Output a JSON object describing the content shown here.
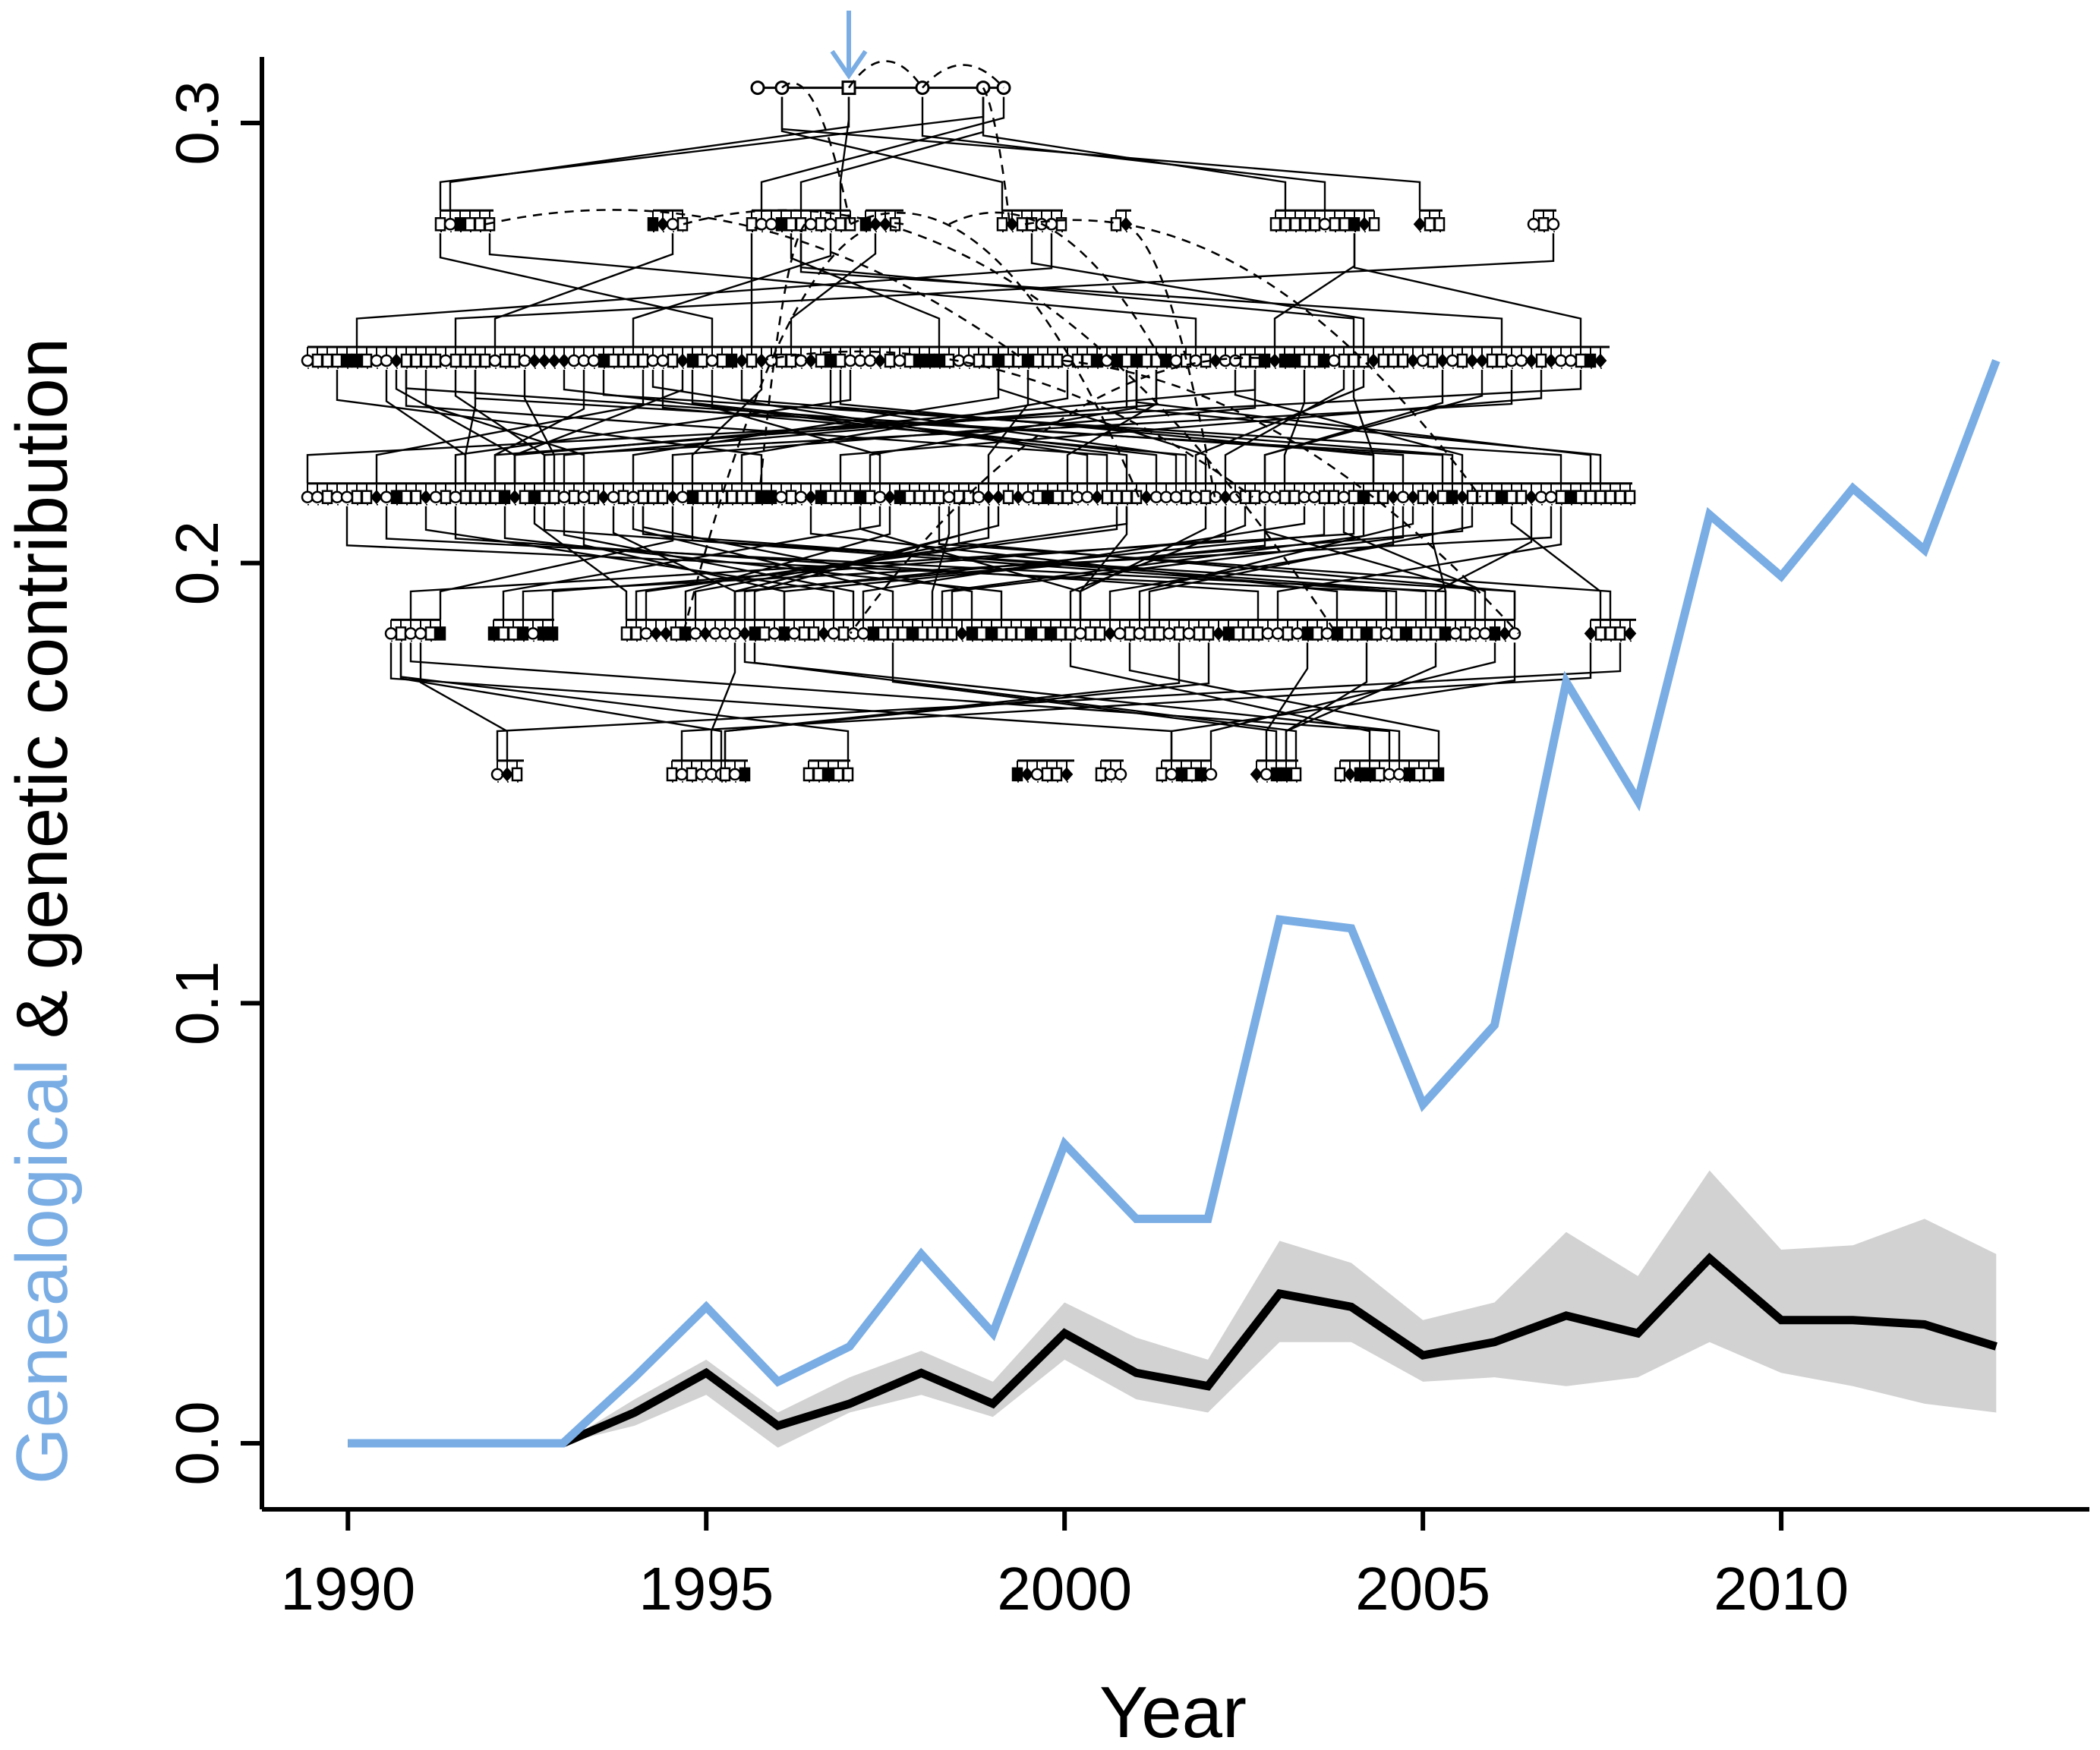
{
  "chart_data": {
    "type": "line",
    "xlabel": "Year",
    "ylabel": {
      "highlight": "Genealogical",
      "rest": " & genetic contribution",
      "highlight_color": "#7aade4",
      "rest_color": "#000000"
    },
    "xlim": [
      1988.8,
      2014.3
    ],
    "ylim": [
      -0.015,
      0.315
    ],
    "x_ticks": [
      1990,
      1995,
      2000,
      2005,
      2010
    ],
    "x_tick_labels": [
      "1990",
      "1995",
      "2000",
      "2005",
      "2010"
    ],
    "y_ticks": [
      0.0,
      0.1,
      0.2,
      0.3
    ],
    "y_tick_labels": [
      "0.0",
      "0.1",
      "0.2",
      "0.3"
    ],
    "x": [
      1990,
      1991,
      1992,
      1993,
      1994,
      1995,
      1996,
      1997,
      1998,
      1999,
      2000,
      2001,
      2002,
      2003,
      2004,
      2005,
      2006,
      2007,
      2008,
      2009,
      2010,
      2011,
      2012,
      2013
    ],
    "series": [
      {
        "role": "genealogical",
        "color": "#7aade4",
        "values": [
          0,
          0,
          0,
          0,
          0.015,
          0.031,
          0.014,
          0.022,
          0.043,
          0.025,
          0.068,
          0.051,
          0.051,
          0.119,
          0.117,
          0.077,
          0.095,
          0.173,
          0.146,
          0.211,
          0.197,
          0.217,
          0.203,
          0.246
        ]
      },
      {
        "role": "genetic",
        "color": "#000000",
        "values": [
          0,
          0,
          0,
          0,
          0.007,
          0.016,
          0.004,
          0.009,
          0.016,
          0.009,
          0.025,
          0.016,
          0.013,
          0.034,
          0.031,
          0.02,
          0.023,
          0.029,
          0.025,
          0.042,
          0.028,
          0.028,
          0.027,
          0.022
        ],
        "band_lower": [
          0,
          0,
          0,
          0,
          0.004,
          0.011,
          -0.001,
          0.007,
          0.011,
          0.006,
          0.019,
          0.01,
          0.007,
          0.023,
          0.023,
          0.014,
          0.015,
          0.013,
          0.015,
          0.023,
          0.016,
          0.013,
          0.009,
          0.007
        ],
        "band_upper": [
          0,
          0,
          0,
          0,
          0.01,
          0.019,
          0.007,
          0.015,
          0.021,
          0.014,
          0.032,
          0.024,
          0.019,
          0.046,
          0.041,
          0.028,
          0.032,
          0.048,
          0.038,
          0.062,
          0.044,
          0.045,
          0.051,
          0.043
        ],
        "band_color": "#d2d2d2"
      }
    ],
    "inset_pedigree": {
      "description_visible": "pedigree tree of descendants drawn over the upper plot area",
      "marker_color": "#7aade4",
      "rows_y": [
        0.308,
        0.277,
        0.246,
        0.215,
        0.184,
        0.152
      ]
    },
    "grid": false,
    "legend": "none"
  }
}
